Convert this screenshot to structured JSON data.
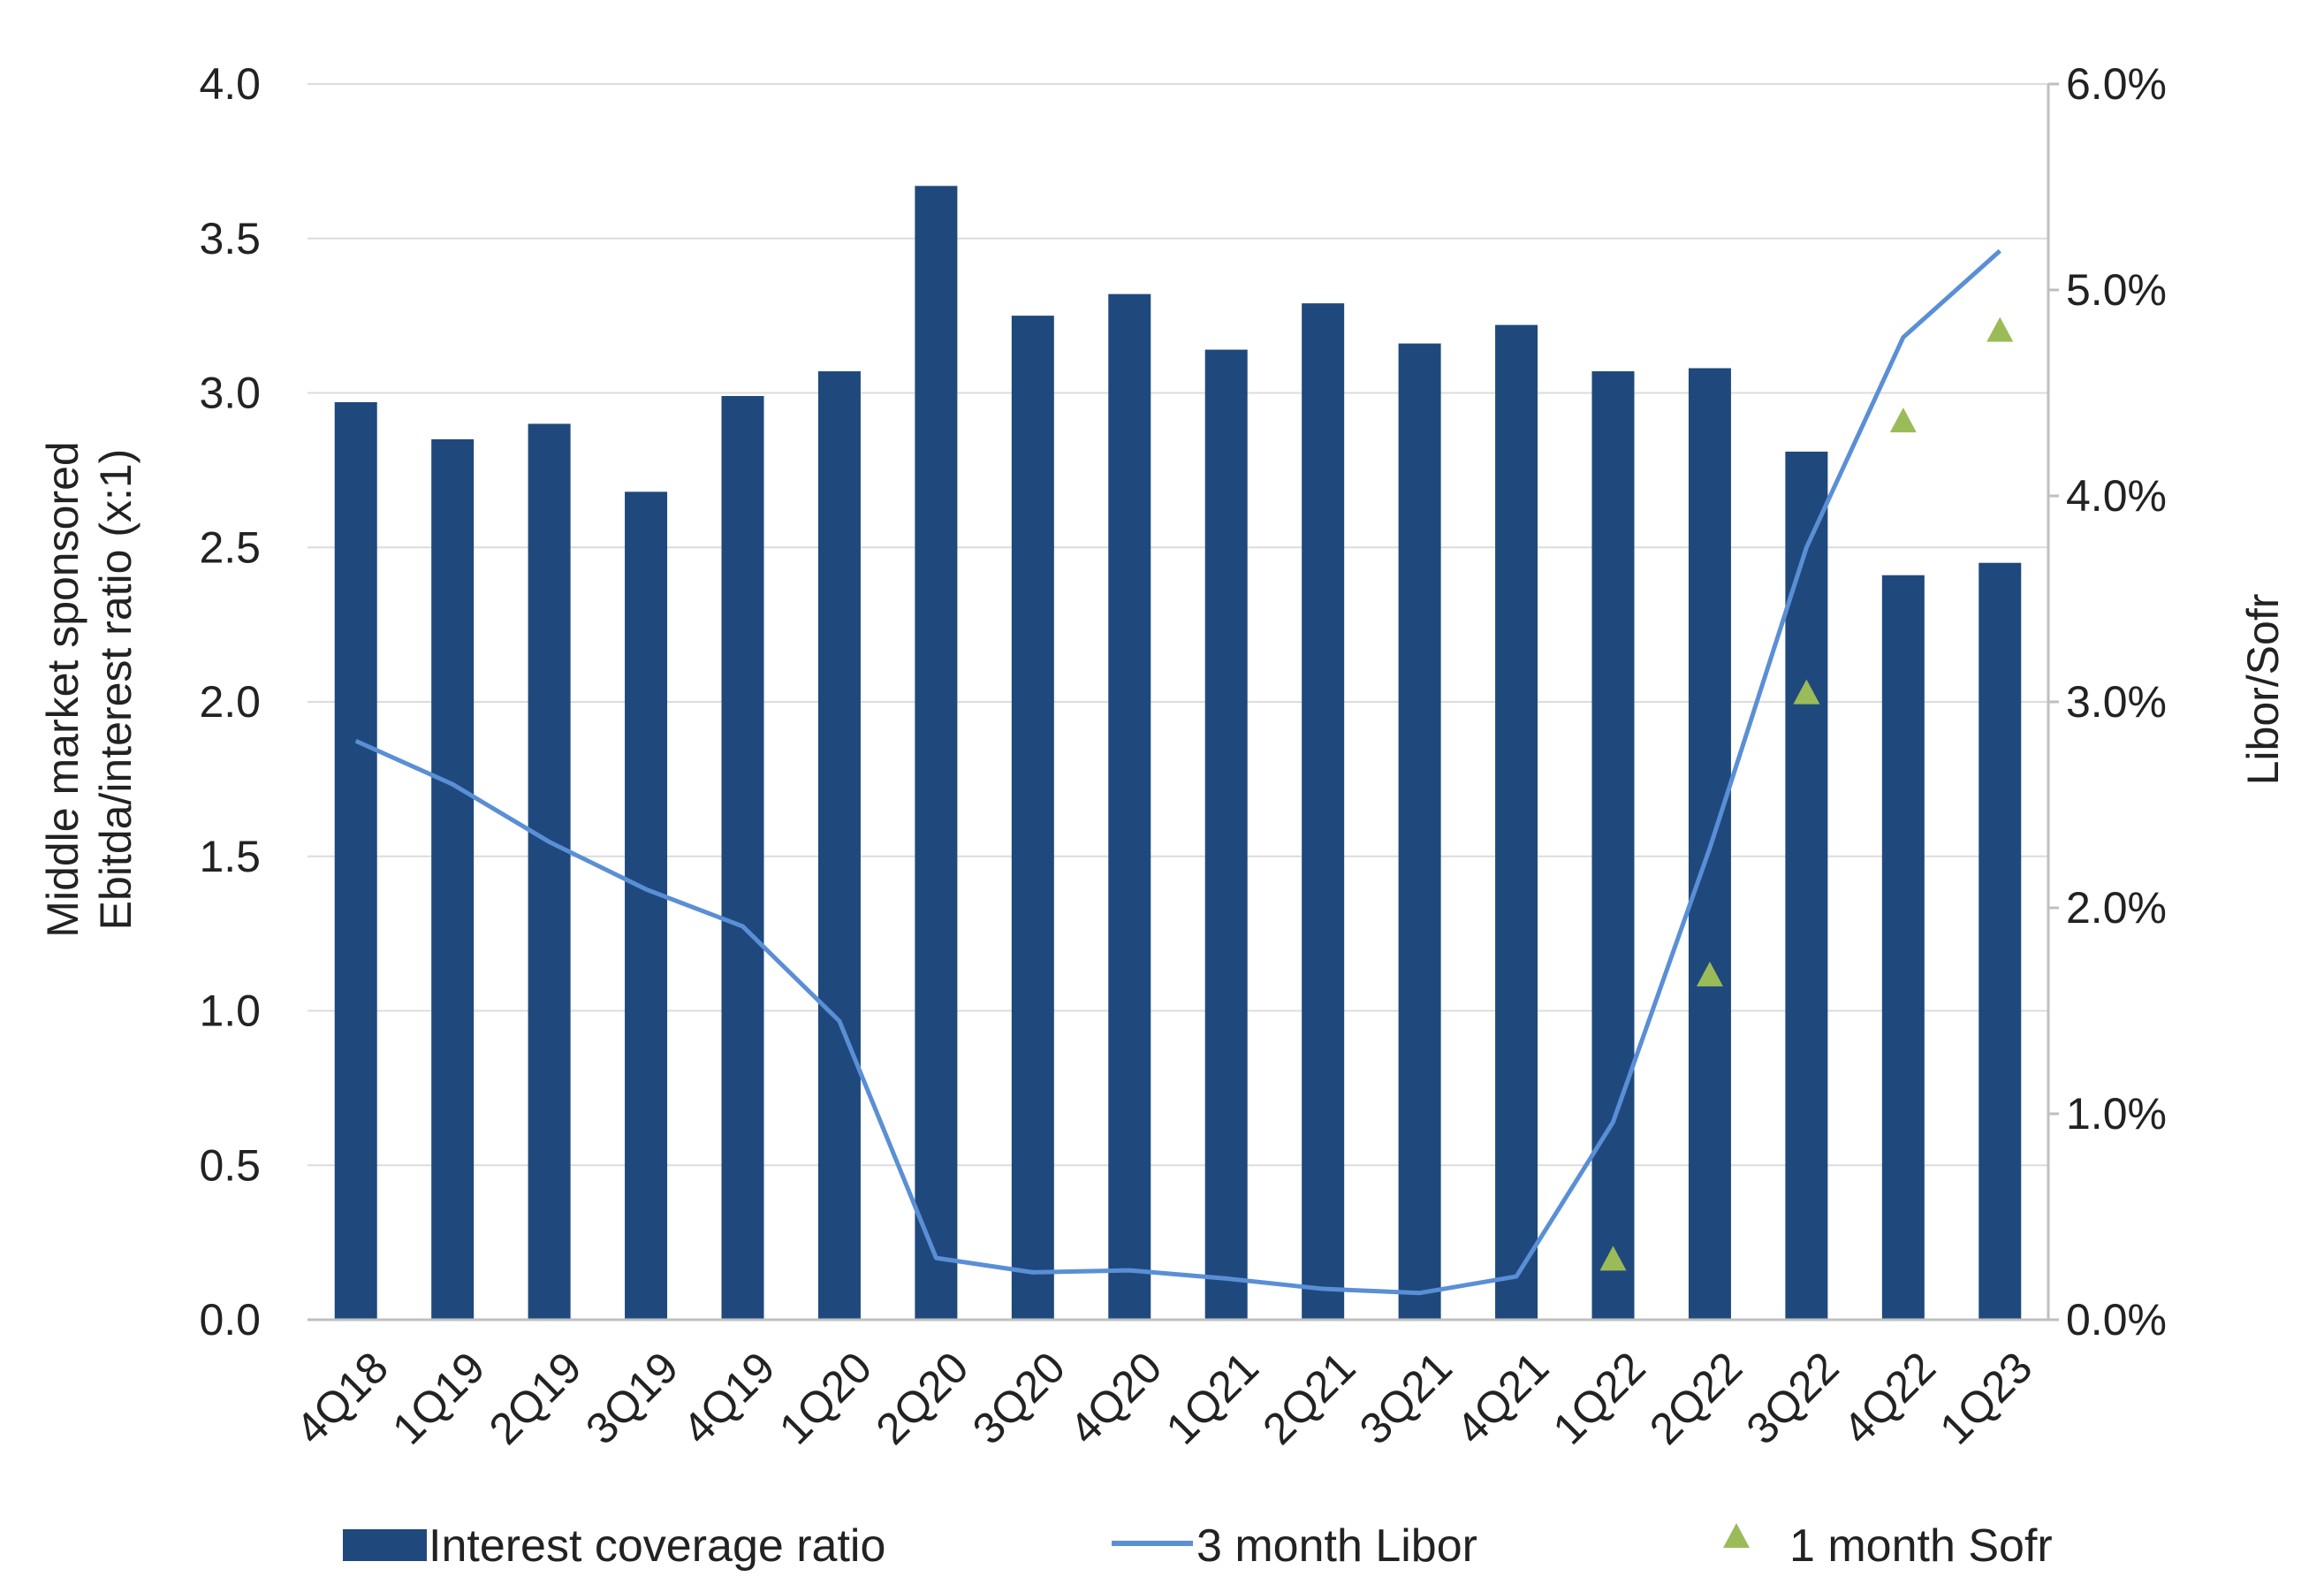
{
  "chart_data": {
    "type": "bar",
    "categories": [
      "4Q18",
      "1Q19",
      "2Q19",
      "3Q19",
      "4Q19",
      "1Q20",
      "2Q20",
      "3Q20",
      "4Q20",
      "1Q21",
      "2Q21",
      "3Q21",
      "4Q21",
      "1Q22",
      "2Q22",
      "3Q22",
      "4Q22",
      "1Q23"
    ],
    "series": [
      {
        "name": "Interest coverage ratio",
        "type": "bar",
        "axis": "left",
        "color": "#1f497d",
        "values": [
          2.97,
          2.85,
          2.9,
          2.68,
          2.99,
          3.07,
          3.67,
          3.25,
          3.32,
          3.14,
          3.29,
          3.16,
          3.22,
          3.07,
          3.08,
          2.81,
          2.41,
          2.45
        ]
      },
      {
        "name": "3 month Libor",
        "type": "line",
        "axis": "right",
        "color": "#5a8fd6",
        "values": [
          2.81,
          2.6,
          2.32,
          2.09,
          1.91,
          1.45,
          0.3,
          0.23,
          0.24,
          0.2,
          0.15,
          0.13,
          0.21,
          0.96,
          2.29,
          3.75,
          4.77,
          5.19
        ]
      },
      {
        "name": "1 month Sofr",
        "type": "scatter",
        "marker": "triangle",
        "axis": "right",
        "color": "#9bbb59",
        "values": [
          null,
          null,
          null,
          null,
          null,
          null,
          null,
          null,
          null,
          null,
          null,
          null,
          null,
          0.29,
          1.67,
          3.04,
          4.36,
          4.8
        ]
      }
    ],
    "ylabel": "Middle market sponsored Ebitda/interest ratio (x:1)",
    "ylabel_lines": [
      "Middle market sponsored",
      "Ebitda/interest ratio (x:1)"
    ],
    "y2label": "Libor/Sofr",
    "ylim": [
      0,
      4
    ],
    "y2lim": [
      0,
      6
    ],
    "yticks": [
      "0.0",
      "0.5",
      "1.0",
      "1.5",
      "2.0",
      "2.5",
      "3.0",
      "3.5",
      "4.0"
    ],
    "y2ticks": [
      "0.0%",
      "1.0%",
      "2.0%",
      "3.0%",
      "4.0%",
      "5.0%",
      "6.0%"
    ],
    "grid": true,
    "legend": "bottom"
  }
}
